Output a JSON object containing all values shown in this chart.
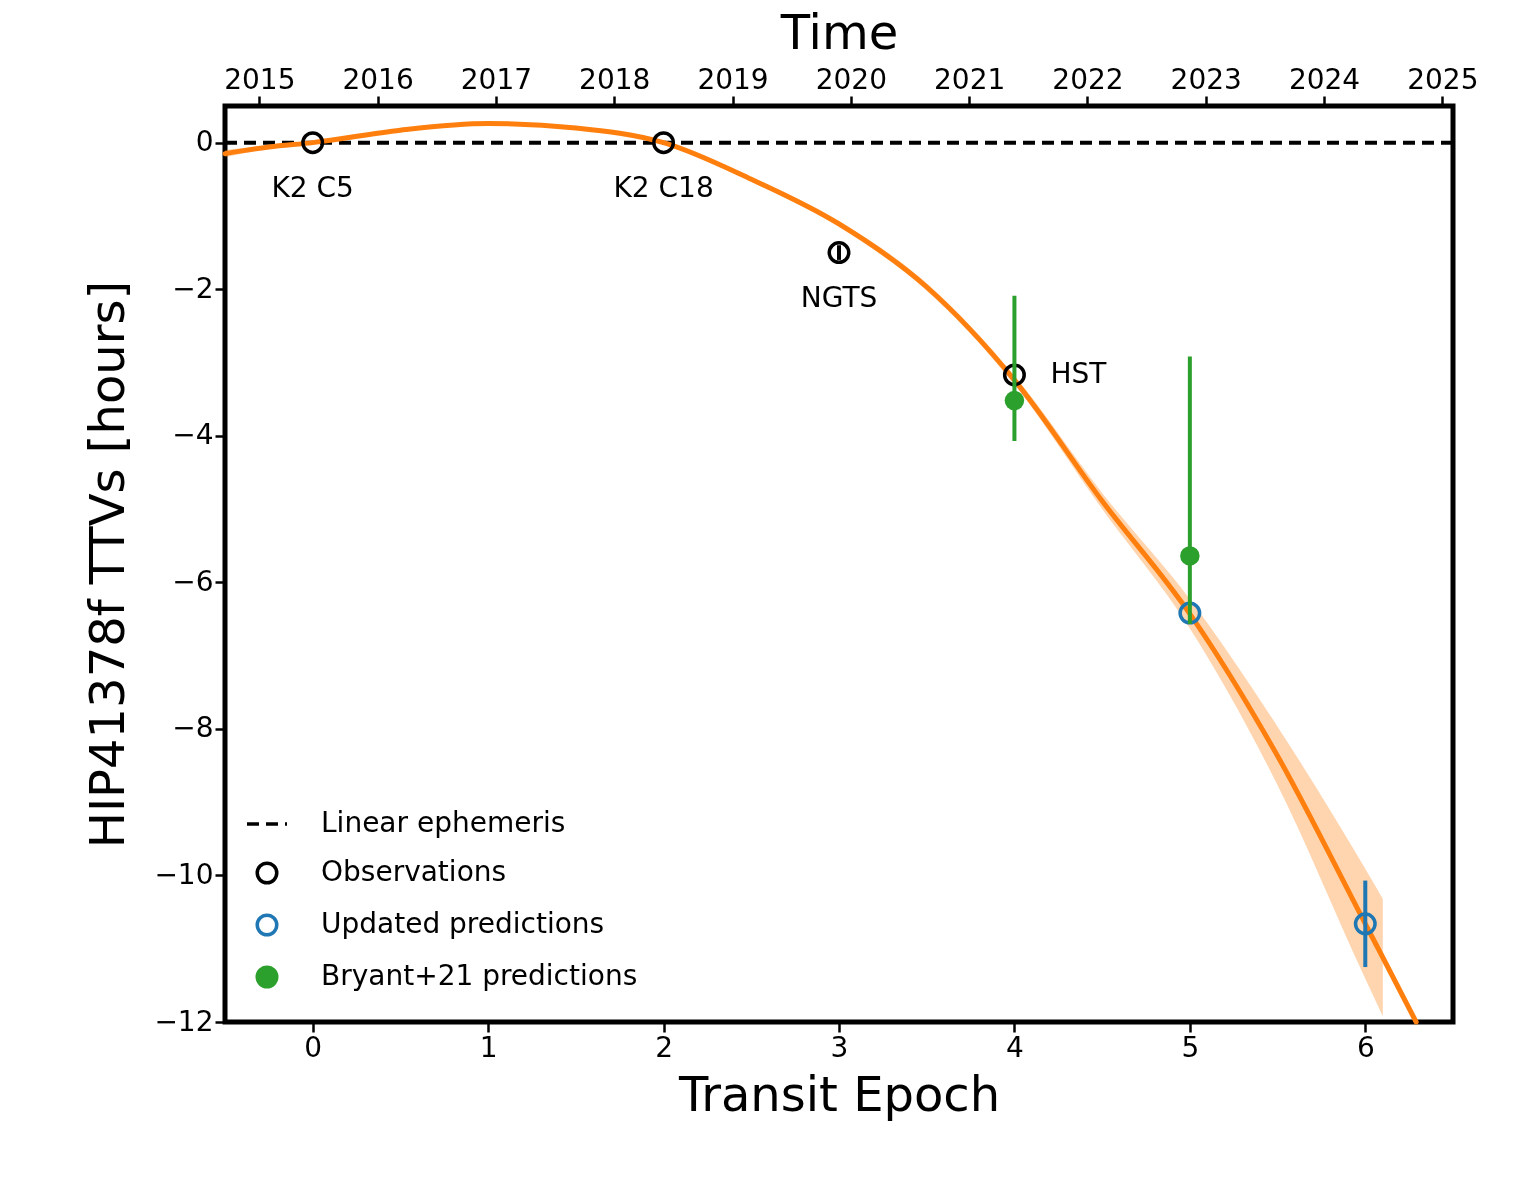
{
  "chart_data": {
    "type": "scatter",
    "xlabel": "Transit Epoch",
    "ylabel": "HIP41378f TTVs [hours]",
    "x2label": "Time",
    "xlim": [
      -0.5,
      6.5
    ],
    "xticks": [
      0,
      1,
      2,
      3,
      4,
      5,
      6
    ],
    "ylim": [
      -12,
      0.5
    ],
    "yticks": [
      -12,
      -10,
      -8,
      -6,
      -4,
      -2,
      0
    ],
    "x2lim": [
      2014.71,
      2025.09
    ],
    "x2ticks": [
      2015,
      2016,
      2017,
      2018,
      2019,
      2020,
      2021,
      2022,
      2023,
      2024,
      2025
    ],
    "grid": false,
    "legend": "bottom left",
    "ref_lines": [
      {
        "axis": "y",
        "value": 0,
        "label": "Linear ephemeris",
        "color": "#000000",
        "line_style": "dashed"
      }
    ],
    "series": [
      {
        "type": "line",
        "color": "#ff7f0e",
        "x": [
          -0.5,
          -0.25,
          0,
          0.5,
          1,
          1.5,
          2,
          2.5,
          3,
          3.5,
          4,
          4.5,
          5,
          5.5,
          6,
          6.1,
          6.29
        ],
        "values": [
          -0.15,
          -0.06,
          0,
          0.17,
          0.26,
          0.2,
          0,
          -0.5,
          -1.11,
          -1.97,
          -3.24,
          -4.89,
          -6.43,
          -8.37,
          -10.66,
          -11.12,
          -12
        ],
        "lower": [
          -0.2,
          -0.08,
          -0.02,
          0.15,
          0.24,
          0.18,
          -0.02,
          -0.53,
          -1.15,
          -2.02,
          -3.3,
          -5.0,
          -6.63,
          -8.77,
          -11.41,
          -11.92,
          null
        ],
        "upper": [
          -0.1,
          -0.04,
          0.02,
          0.19,
          0.28,
          0.22,
          0.02,
          -0.47,
          -1.07,
          -1.92,
          -3.18,
          -4.78,
          -6.23,
          -7.97,
          -9.91,
          -10.32,
          null
        ]
      },
      {
        "type": "scatter",
        "name": "Observations",
        "color": "#000000",
        "x": [
          0,
          2,
          3,
          4
        ],
        "values": [
          0,
          0,
          -1.5,
          -3.17
        ],
        "errors": [
          null,
          null,
          0.1,
          null
        ]
      },
      {
        "type": "scatter",
        "name": "Updated predictions",
        "color": "#1f77b4",
        "x": [
          5,
          6
        ],
        "values": [
          -6.42,
          -10.66
        ],
        "errors": [
          null,
          0.59
        ]
      },
      {
        "type": "scatter",
        "name": "Bryant+21 predictions",
        "color": "#2ca02c",
        "marker": "circle",
        "x": [
          4,
          5
        ],
        "values": [
          -3.52,
          -5.64
        ],
        "errors": [
          [
            -4.07,
            -2.09
          ],
          [
            -6.57,
            -2.92
          ]
        ]
      }
    ],
    "annotations": [
      {
        "text": "K2 C5",
        "x": 0,
        "y": 0
      },
      {
        "text": "K2 C18",
        "x": 2,
        "y": 0
      },
      {
        "text": "NGTS",
        "x": 3,
        "y": -1.5
      },
      {
        "text": "HST",
        "x": 4,
        "y": -3.17
      }
    ]
  }
}
